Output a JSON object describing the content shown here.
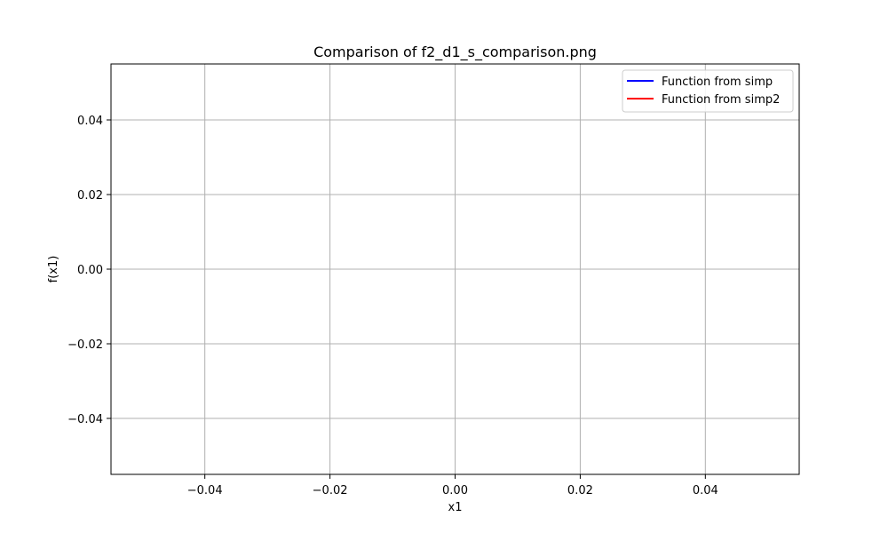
{
  "chart_data": {
    "type": "line",
    "title": "Comparison of f2_d1_s_comparison.png",
    "xlabel": "x1",
    "ylabel": "f(x1)",
    "xlim": [
      -0.055,
      0.055
    ],
    "ylim": [
      -0.055,
      0.055
    ],
    "xticks": [
      -0.04,
      -0.02,
      0.0,
      0.02,
      0.04
    ],
    "xtick_labels": [
      "−0.04",
      "−0.02",
      "0.00",
      "0.02",
      "0.04"
    ],
    "yticks": [
      -0.04,
      -0.02,
      0.0,
      0.02,
      0.04
    ],
    "ytick_labels": [
      "−0.04",
      "−0.02",
      "0.00",
      "0.02",
      "0.04"
    ],
    "grid": true,
    "legend_position": "top-right",
    "series": [
      {
        "name": "Function from simp",
        "color": "#0000ff",
        "x": [],
        "y": []
      },
      {
        "name": "Function from simp2",
        "color": "#ff0000",
        "x": [],
        "y": []
      }
    ]
  }
}
